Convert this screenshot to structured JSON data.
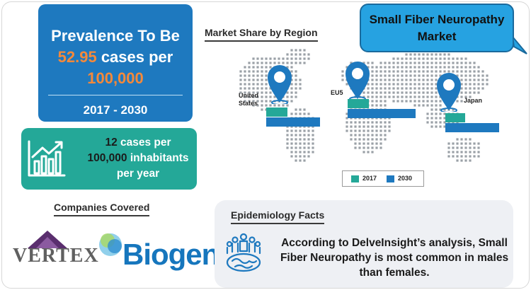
{
  "prevalence": {
    "line1": "Prevalence To Be",
    "value": "52.95",
    "unit": " cases per",
    "line3": "100,000",
    "years": "2017 - 2030",
    "box_color": "#1e79bf",
    "highlight_color": "#f5893a"
  },
  "incidence": {
    "value": "12",
    "unit": " cases per",
    "line2_value": "100,000",
    "line2_rest": " inhabitants",
    "line3": "per year",
    "icon": "growth-chart-icon",
    "box_color": "#24a898"
  },
  "market": {
    "heading": "Market Share by Region",
    "regions": [
      {
        "label": "United States",
        "line1": "United",
        "line2": "States",
        "icon": "location-pin-icon"
      },
      {
        "label": "EU5",
        "icon": "location-pin-icon"
      },
      {
        "label": "Japan",
        "icon": "location-pin-icon"
      }
    ],
    "legend": [
      {
        "label": "2017",
        "color": "#24a898"
      },
      {
        "label": "2030",
        "color": "#1e79bf"
      }
    ]
  },
  "title_bubble": {
    "line1": "Small Fiber Neuropathy",
    "line2": "Market",
    "color": "#26a2e1"
  },
  "companies": {
    "heading": "Companies Covered",
    "logos": [
      {
        "name": "VERTEX",
        "color": "#606060",
        "accent": "#5a2e6e"
      },
      {
        "name": "Biogen",
        "color": "#1676bd"
      }
    ]
  },
  "epidemiology": {
    "heading": "Epidemiology Facts",
    "icon": "population-globe-icon",
    "line1": "According to DelveInsight’s analysis, Small",
    "line2": "Fiber Neuropathy is most common in males",
    "line3": "than females."
  }
}
